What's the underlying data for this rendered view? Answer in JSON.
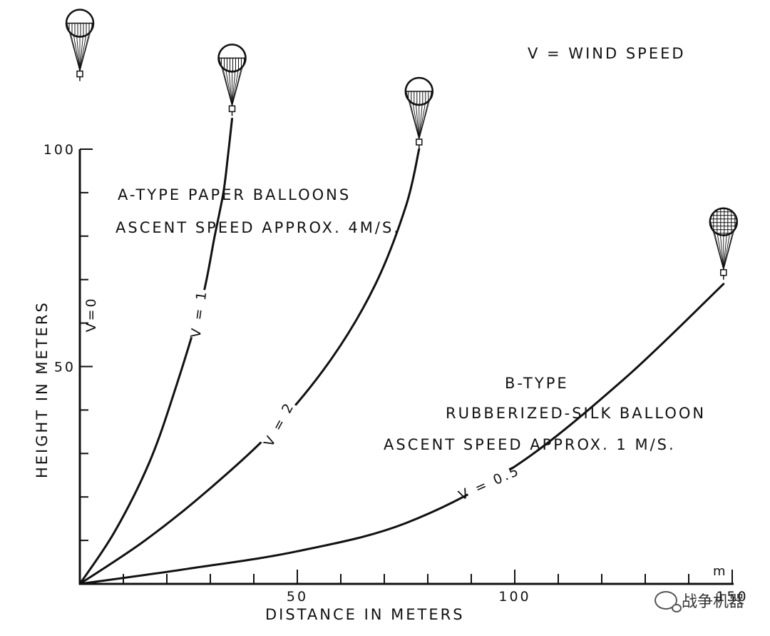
{
  "chart_data": {
    "type": "line",
    "xlabel": "DISTANCE   IN   METERS",
    "ylabel": "HEIGHT  IN  METERS",
    "xlim": [
      0,
      150
    ],
    "ylim": [
      0,
      100
    ],
    "x_ticks": [
      {
        "v": 50,
        "label": "50"
      },
      {
        "v": 100,
        "label": "100"
      },
      {
        "v": 150,
        "label": "150"
      }
    ],
    "y_ticks": [
      {
        "v": 50,
        "label": "50"
      },
      {
        "v": 100,
        "label": "100"
      }
    ],
    "x_minor_step": 10,
    "y_minor_step": 10,
    "axis_unit_mark": "m",
    "legend_note": "V  =  WIND  SPEED",
    "annotations": [
      {
        "text": "A-TYPE  PAPER  BALLOONS"
      },
      {
        "text": "ASCENT  SPEED  APPROX.  4M/S."
      },
      {
        "text": "B-TYPE"
      },
      {
        "text": "RUBBERIZED-SILK  BALLOON"
      },
      {
        "text": "ASCENT  SPEED  APPROX.  1 M/S."
      }
    ],
    "series": [
      {
        "name": "V=0",
        "x": [
          0,
          0
        ],
        "y": [
          0,
          100
        ]
      },
      {
        "name": "V=1",
        "x": [
          0,
          8,
          16,
          22,
          28,
          31,
          33,
          34,
          35
        ],
        "y": [
          0,
          12,
          28,
          45,
          65,
          80,
          90,
          98,
          107
        ]
      },
      {
        "name": "V=2",
        "x": [
          0,
          15,
          30,
          45,
          58,
          68,
          75,
          78
        ],
        "y": [
          0,
          10,
          22,
          36,
          52,
          69,
          87,
          100
        ]
      },
      {
        "name": "V=0.5",
        "x": [
          0,
          25,
          50,
          75,
          100,
          125,
          148
        ],
        "y": [
          0,
          3.5,
          7.5,
          14,
          27,
          47,
          69
        ]
      }
    ],
    "colors": {
      "ink": "#111111",
      "background": "#ffffff"
    }
  },
  "watermark": {
    "text": "战争机器",
    "icon": "chat-bubble-icon"
  }
}
